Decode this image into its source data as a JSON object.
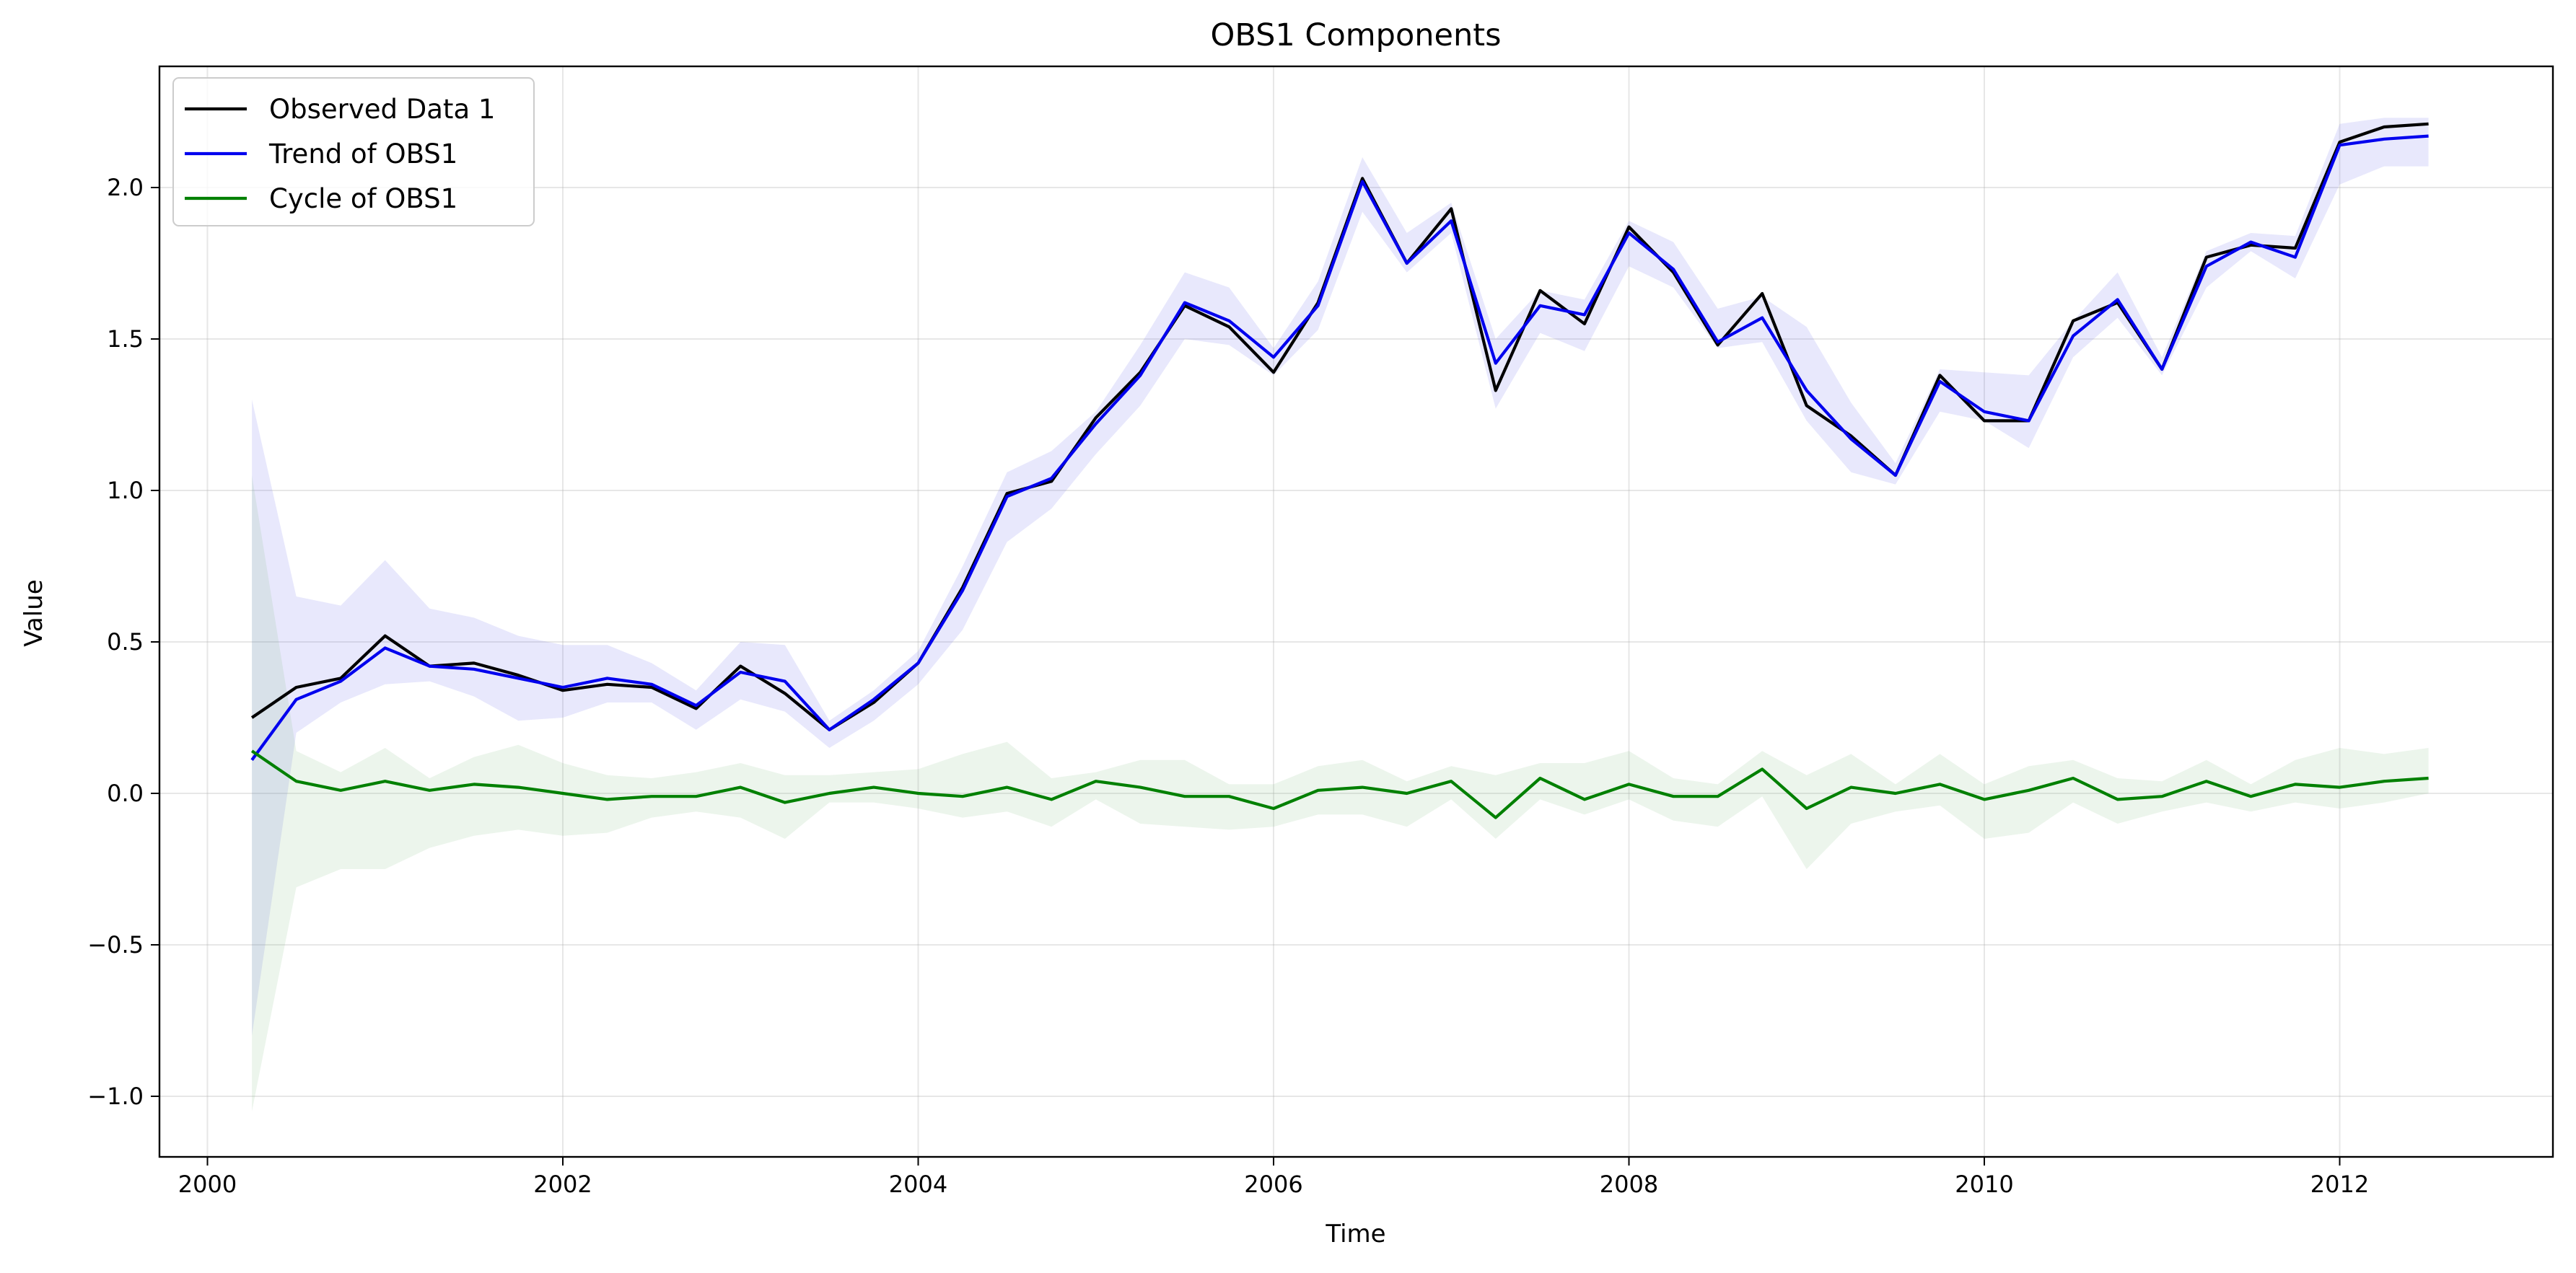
{
  "chart_data": {
    "type": "line",
    "title": "OBS1 Components",
    "xlabel": "Time",
    "ylabel": "Value",
    "xlim": [
      1999.73,
      2013.2
    ],
    "ylim": [
      -1.2,
      2.4
    ],
    "x_ticks": [
      2000,
      2002,
      2004,
      2006,
      2008,
      2010,
      2012
    ],
    "y_ticks": [
      -1.0,
      -0.5,
      0.0,
      0.5,
      1.0,
      1.5,
      2.0
    ],
    "x_tick_labels": [
      "2000",
      "2002",
      "2004",
      "2006",
      "2008",
      "2010",
      "2012"
    ],
    "y_tick_labels": [
      "−1.0",
      "−0.5",
      "0.0",
      "0.5",
      "1.0",
      "1.5",
      "2.0"
    ],
    "grid": true,
    "legend_position": "top-left",
    "x": [
      2000.25,
      2000.5,
      2000.75,
      2001.0,
      2001.25,
      2001.5,
      2001.75,
      2002.0,
      2002.25,
      2002.5,
      2002.75,
      2003.0,
      2003.25,
      2003.5,
      2003.75,
      2004.0,
      2004.25,
      2004.5,
      2004.75,
      2005.0,
      2005.25,
      2005.5,
      2005.75,
      2006.0,
      2006.25,
      2006.5,
      2006.75,
      2007.0,
      2007.25,
      2007.5,
      2007.75,
      2008.0,
      2008.25,
      2008.5,
      2008.75,
      2009.0,
      2009.25,
      2009.5,
      2009.75,
      2010.0,
      2010.25,
      2010.5,
      2010.75,
      2011.0,
      2011.25,
      2011.5,
      2011.75,
      2012.0,
      2012.25,
      2012.5
    ],
    "series": [
      {
        "name": "Observed Data 1",
        "color": "#000000",
        "values": [
          0.25,
          0.35,
          0.38,
          0.52,
          0.42,
          0.43,
          0.39,
          0.34,
          0.36,
          0.35,
          0.28,
          0.42,
          0.33,
          0.21,
          0.3,
          0.43,
          0.68,
          0.99,
          1.03,
          1.24,
          1.39,
          1.61,
          1.54,
          1.39,
          1.62,
          2.03,
          1.75,
          1.93,
          1.33,
          1.66,
          1.55,
          1.87,
          1.72,
          1.48,
          1.65,
          1.28,
          1.18,
          1.05,
          1.38,
          1.23,
          1.23,
          1.56,
          1.62,
          1.4,
          1.77,
          1.81,
          1.8,
          2.15,
          2.2,
          2.21
        ]
      },
      {
        "name": "Trend of OBS1",
        "color": "#0000ee",
        "band_color": "#6666ee",
        "values": [
          0.11,
          0.31,
          0.37,
          0.48,
          0.42,
          0.41,
          0.38,
          0.35,
          0.38,
          0.36,
          0.29,
          0.4,
          0.37,
          0.21,
          0.31,
          0.43,
          0.67,
          0.98,
          1.04,
          1.22,
          1.38,
          1.62,
          1.56,
          1.44,
          1.61,
          2.02,
          1.75,
          1.89,
          1.42,
          1.61,
          1.58,
          1.85,
          1.73,
          1.49,
          1.57,
          1.33,
          1.17,
          1.05,
          1.36,
          1.26,
          1.23,
          1.51,
          1.63,
          1.4,
          1.74,
          1.82,
          1.77,
          2.14,
          2.16,
          2.17
        ],
        "lower": [
          -0.8,
          0.2,
          0.3,
          0.36,
          0.37,
          0.32,
          0.24,
          0.25,
          0.3,
          0.3,
          0.21,
          0.31,
          0.27,
          0.15,
          0.24,
          0.36,
          0.54,
          0.83,
          0.94,
          1.12,
          1.28,
          1.5,
          1.48,
          1.38,
          1.53,
          1.92,
          1.72,
          1.85,
          1.27,
          1.52,
          1.46,
          1.74,
          1.67,
          1.47,
          1.49,
          1.23,
          1.06,
          1.02,
          1.26,
          1.23,
          1.14,
          1.44,
          1.57,
          1.38,
          1.67,
          1.79,
          1.7,
          2.01,
          2.07,
          2.07
        ],
        "upper": [
          1.3,
          0.65,
          0.62,
          0.77,
          0.61,
          0.58,
          0.52,
          0.49,
          0.49,
          0.43,
          0.34,
          0.5,
          0.49,
          0.24,
          0.34,
          0.47,
          0.75,
          1.06,
          1.13,
          1.26,
          1.48,
          1.72,
          1.67,
          1.47,
          1.69,
          2.1,
          1.85,
          1.95,
          1.5,
          1.66,
          1.63,
          1.89,
          1.82,
          1.6,
          1.64,
          1.54,
          1.29,
          1.09,
          1.4,
          1.39,
          1.38,
          1.56,
          1.72,
          1.44,
          1.79,
          1.85,
          1.84,
          2.21,
          2.23,
          2.23
        ]
      },
      {
        "name": "Cycle of OBS1",
        "color": "#008000",
        "band_color": "#7fbf7f",
        "values": [
          0.14,
          0.04,
          0.01,
          0.04,
          0.01,
          0.03,
          0.02,
          0.0,
          -0.02,
          -0.01,
          -0.01,
          0.02,
          -0.03,
          0.0,
          0.02,
          0.0,
          -0.01,
          0.02,
          -0.02,
          0.04,
          0.02,
          -0.01,
          -0.01,
          -0.05,
          0.01,
          0.02,
          0.0,
          0.04,
          -0.08,
          0.05,
          -0.02,
          0.03,
          -0.01,
          -0.01,
          0.08,
          -0.05,
          0.02,
          0.0,
          0.03,
          -0.02,
          0.01,
          0.05,
          -0.02,
          -0.01,
          0.04,
          -0.01,
          0.03,
          0.02,
          0.04,
          0.05
        ],
        "lower": [
          -1.05,
          -0.31,
          -0.25,
          -0.25,
          -0.18,
          -0.14,
          -0.12,
          -0.14,
          -0.13,
          -0.08,
          -0.06,
          -0.08,
          -0.15,
          -0.03,
          -0.03,
          -0.05,
          -0.08,
          -0.06,
          -0.11,
          -0.02,
          -0.1,
          -0.11,
          -0.12,
          -0.11,
          -0.07,
          -0.07,
          -0.11,
          -0.02,
          -0.15,
          -0.02,
          -0.07,
          -0.02,
          -0.09,
          -0.11,
          -0.01,
          -0.25,
          -0.1,
          -0.06,
          -0.04,
          -0.15,
          -0.13,
          -0.03,
          -0.1,
          -0.06,
          -0.03,
          -0.06,
          -0.03,
          -0.05,
          -0.03,
          0.0
        ],
        "upper": [
          1.05,
          0.14,
          0.07,
          0.15,
          0.05,
          0.12,
          0.16,
          0.1,
          0.06,
          0.05,
          0.07,
          0.1,
          0.06,
          0.06,
          0.07,
          0.08,
          0.13,
          0.17,
          0.05,
          0.07,
          0.11,
          0.11,
          0.03,
          0.03,
          0.09,
          0.11,
          0.04,
          0.09,
          0.06,
          0.1,
          0.1,
          0.14,
          0.05,
          0.03,
          0.14,
          0.06,
          0.13,
          0.03,
          0.13,
          0.03,
          0.09,
          0.11,
          0.05,
          0.04,
          0.11,
          0.03,
          0.11,
          0.15,
          0.13,
          0.15
        ]
      }
    ]
  }
}
